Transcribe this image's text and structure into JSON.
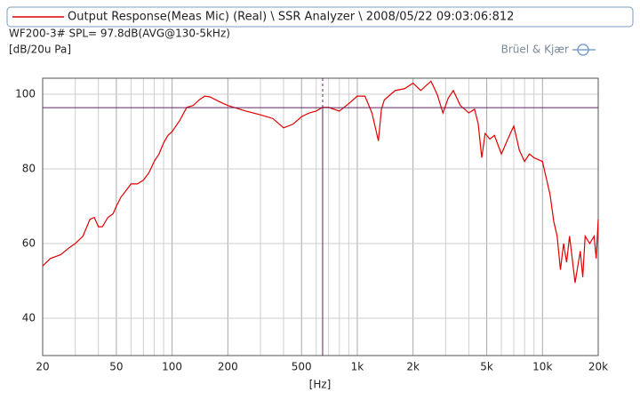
{
  "chart_data": {
    "type": "line",
    "subtitle": "WF200-3# SPL= 97.8dB(AVG@130-5kHz)",
    "brand": "Brüel & Kjær",
    "y_label": "[dB/20u Pa]",
    "x_label": "[Hz]",
    "xscale": "log",
    "grid": true,
    "xlim": [
      20,
      20000
    ],
    "ylim": [
      30,
      104.3
    ],
    "xticks": [
      20,
      50,
      100,
      200,
      500,
      {
        "value": 1000,
        "label": "1k"
      },
      {
        "value": 2000,
        "label": "2k"
      },
      {
        "value": 5000,
        "label": "5k"
      },
      {
        "value": 10000,
        "label": "10k"
      },
      {
        "value": 20000,
        "label": "20k"
      }
    ],
    "xgrid": [
      30,
      40,
      60,
      70,
      80,
      90,
      300,
      400,
      600,
      700,
      800,
      900,
      3000,
      4000,
      6000,
      7000,
      8000,
      9000
    ],
    "yticks": [
      40,
      60,
      80,
      100
    ],
    "cursor": {
      "x": 650,
      "y": 96.4,
      "color": "#602060"
    },
    "x": [
      20,
      22,
      25,
      28,
      30,
      33,
      36,
      38,
      40,
      42,
      45,
      48,
      50,
      53,
      56,
      60,
      65,
      70,
      75,
      80,
      85,
      90,
      95,
      100,
      110,
      120,
      130,
      140,
      150,
      160,
      180,
      200,
      250,
      300,
      350,
      400,
      450,
      500,
      550,
      600,
      650,
      700,
      800,
      900,
      1000,
      1100,
      1200,
      1300,
      1350,
      1400,
      1600,
      1800,
      2000,
      2200,
      2500,
      2700,
      2900,
      3100,
      3300,
      3600,
      4000,
      4300,
      4500,
      4700,
      4900,
      5200,
      5500,
      6000,
      6500,
      7000,
      7500,
      8000,
      8500,
      9000,
      10000,
      11000,
      11500,
      12000,
      12500,
      13000,
      13500,
      14000,
      15000,
      16000,
      16500,
      17000,
      18000,
      19000,
      19500,
      20000
    ],
    "series": [
      {
        "name": "Output Response(Meas Mic)  (Real) \\ SSR Analyzer \\ 2008/05/22 09:03:06:812",
        "color": "#e00000",
        "values": [
          54,
          56,
          57,
          59,
          60,
          62,
          66.5,
          67,
          64.5,
          64.5,
          67,
          68,
          70,
          72.5,
          74,
          76,
          76,
          77,
          79,
          82,
          84,
          87,
          89,
          90,
          93,
          96.5,
          97,
          98.5,
          99.5,
          99.3,
          98,
          97,
          95.5,
          94.5,
          93.5,
          91,
          92,
          94,
          95,
          95.5,
          96.5,
          96.5,
          95.5,
          97.5,
          99.5,
          99.5,
          95,
          87.5,
          96,
          98.5,
          101,
          101.5,
          103,
          101,
          103.5,
          100,
          95,
          99,
          101,
          97,
          95,
          96,
          92,
          83,
          89.5,
          88,
          89,
          84,
          88,
          91.5,
          85,
          82,
          84,
          83,
          82,
          73,
          66,
          62,
          53,
          60,
          55,
          62,
          49.5,
          58,
          51,
          62,
          60,
          62,
          56,
          66.5
        ]
      }
    ]
  }
}
